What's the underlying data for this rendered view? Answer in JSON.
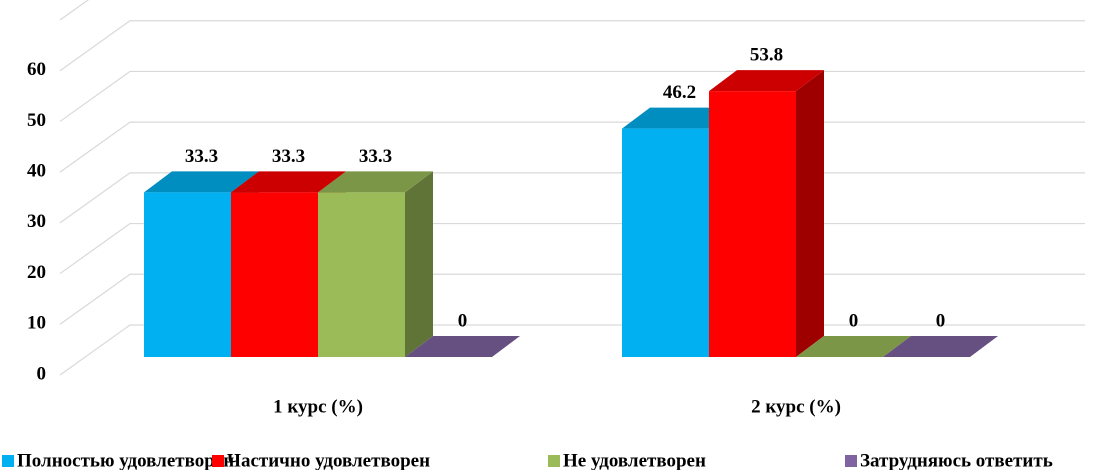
{
  "chart_data": {
    "type": "bar3d",
    "categories": [
      "1 курс (%)",
      "2 курс (%)"
    ],
    "series": [
      {
        "name": "Полностью удовлетворен",
        "color": "#00b0f0",
        "values": [
          33.3,
          46.2
        ]
      },
      {
        "name": "Частично удовлетворен",
        "color": "#ff0000",
        "values": [
          33.3,
          53.8
        ]
      },
      {
        "name": "Не удовлетворен",
        "color": "#9bbb59",
        "values": [
          33.3,
          0
        ]
      },
      {
        "name": "Затрудняюсь ответить",
        "color": "#8064a2",
        "values": [
          0,
          0
        ]
      }
    ],
    "ylim": [
      0,
      70
    ],
    "yticks": [
      0,
      10,
      20,
      30,
      40,
      50,
      60
    ],
    "grid": true,
    "legend": "bottom"
  }
}
